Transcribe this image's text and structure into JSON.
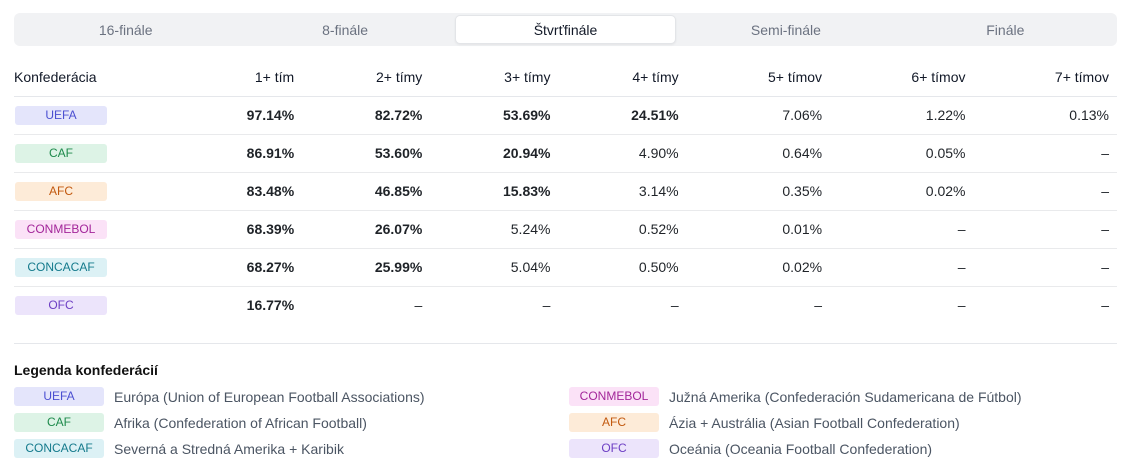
{
  "tabs": [
    {
      "label": "16-finále"
    },
    {
      "label": "8-finále"
    },
    {
      "label": "Štvrťfinále",
      "active": true
    },
    {
      "label": "Semi-finále"
    },
    {
      "label": "Finále"
    }
  ],
  "table": {
    "headers": [
      "Konfederácia",
      "1+ tím",
      "2+ tímy",
      "3+ tímy",
      "4+ tímy",
      "5+ tímov",
      "6+ tímov",
      "7+ tímov"
    ],
    "rows": [
      {
        "conf": "UEFA",
        "bg": "#e4e5fb",
        "fg": "#4b4fd1",
        "cells": [
          "97.14%",
          "82.72%",
          "53.69%",
          "24.51%",
          "7.06%",
          "1.22%",
          "0.13%"
        ],
        "styles": [
          "b",
          "b",
          "b",
          "b",
          "n",
          "n",
          "n"
        ]
      },
      {
        "conf": "CAF",
        "bg": "#ddf3e6",
        "fg": "#1e8a4c",
        "cells": [
          "86.91%",
          "53.60%",
          "20.94%",
          "4.90%",
          "0.64%",
          "0.05%",
          "–"
        ],
        "styles": [
          "b",
          "b",
          "b",
          "n",
          "n",
          "m",
          "d"
        ]
      },
      {
        "conf": "AFC",
        "bg": "#fdebd8",
        "fg": "#c2590f",
        "cells": [
          "83.48%",
          "46.85%",
          "15.83%",
          "3.14%",
          "0.35%",
          "0.02%",
          "–"
        ],
        "styles": [
          "b",
          "b",
          "b",
          "n",
          "n",
          "m",
          "d"
        ]
      },
      {
        "conf": "CONMEBOL",
        "bg": "#fbe2f7",
        "fg": "#a3269a",
        "cells": [
          "68.39%",
          "26.07%",
          "5.24%",
          "0.52%",
          "0.01%",
          "–",
          "–"
        ],
        "styles": [
          "b",
          "b",
          "n",
          "n",
          "m",
          "d",
          "d"
        ]
      },
      {
        "conf": "CONCACAF",
        "bg": "#dcf1f5",
        "fg": "#147a8c",
        "cells": [
          "68.27%",
          "25.99%",
          "5.04%",
          "0.50%",
          "0.02%",
          "–",
          "–"
        ],
        "styles": [
          "b",
          "b",
          "n",
          "n",
          "m",
          "d",
          "d"
        ]
      },
      {
        "conf": "OFC",
        "bg": "#ece4fb",
        "fg": "#6d3fc4",
        "cells": [
          "16.77%",
          "–",
          "–",
          "–",
          "–",
          "–",
          "–"
        ],
        "styles": [
          "b",
          "d",
          "d",
          "d",
          "d",
          "d",
          "d"
        ]
      }
    ]
  },
  "legend": {
    "title": "Legenda konfederácií",
    "items": [
      {
        "conf": "UEFA",
        "desc": "Európa (Union of European Football Associations)",
        "bg": "#e4e5fb",
        "fg": "#4b4fd1"
      },
      {
        "conf": "CAF",
        "desc": "Afrika (Confederation of African Football)",
        "bg": "#ddf3e6",
        "fg": "#1e8a4c"
      },
      {
        "conf": "CONCACAF",
        "desc": "Severná a Stredná Amerika + Karibik",
        "bg": "#dcf1f5",
        "fg": "#147a8c"
      },
      {
        "conf": "CONMEBOL",
        "desc": "Južná Amerika (Confederación Sudamericana de Fútbol)",
        "bg": "#fbe2f7",
        "fg": "#a3269a"
      },
      {
        "conf": "AFC",
        "desc": "Ázia + Austrália (Asian Football Confederation)",
        "bg": "#fdebd8",
        "fg": "#c2590f"
      },
      {
        "conf": "OFC",
        "desc": "Oceánia (Oceania Football Confederation)",
        "bg": "#ece4fb",
        "fg": "#6d3fc4"
      }
    ]
  }
}
